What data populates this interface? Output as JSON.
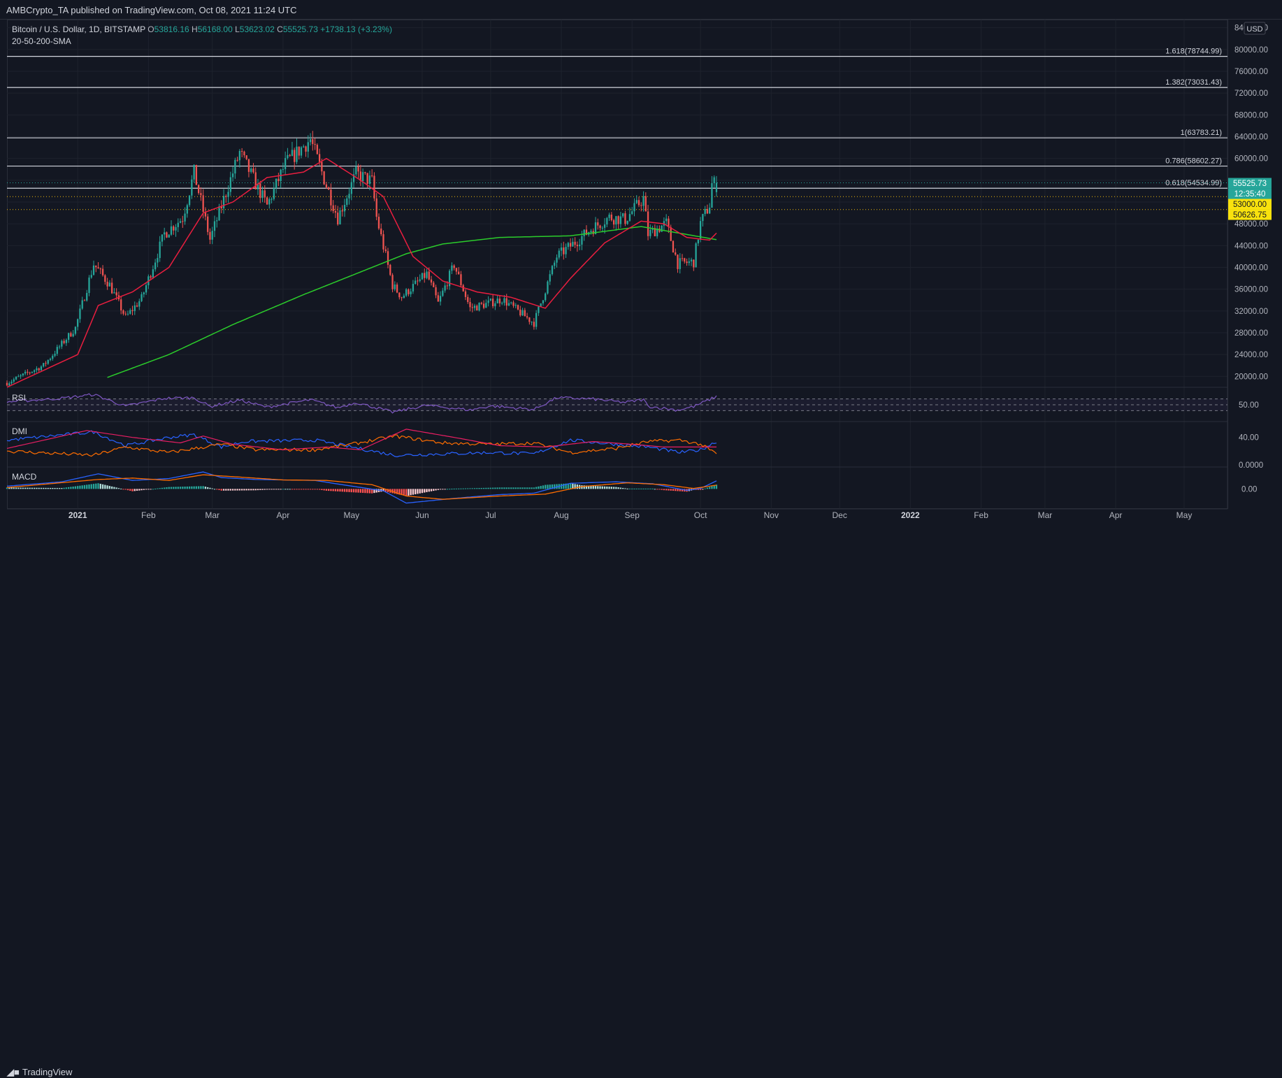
{
  "header": {
    "text": "AMBCrypto_TA published on TradingView.com, Oct 08, 2021 11:24 UTC"
  },
  "footer": {
    "logo_text": "TradingView"
  },
  "colors": {
    "background": "#131722",
    "grid": "#1e222d",
    "up": "#26a69a",
    "down": "#ef5350",
    "sma20": "#e91e3f",
    "sma200": "#2bcc2b",
    "rsi": "#7e57c2",
    "dmi_plus": "#2962ff",
    "dmi_minus": "#ff6d00",
    "adx": "#e91e63",
    "macd": "#2962ff",
    "signal": "#ff6d00",
    "level_line": "#d1d4dc",
    "dotted_level": "#f0b90b"
  },
  "chart_data": [
    {
      "type": "candlestick",
      "title": "Bitcoin / U.S. Dollar, 1D, BITSTAMP",
      "ohlc_text": {
        "o_label": "O",
        "o": "53816.16",
        "h_label": "H",
        "h": "56168.00",
        "l_label": "L",
        "l": "53623.02",
        "c_label": "C",
        "c": "55525.73",
        "change": "+1738.13 (+3.23%)"
      },
      "indicator_label": "20-50-200-SMA",
      "currency": "USD",
      "y_ticks": [
        "84000.00",
        "80000.00",
        "76000.00",
        "72000.00",
        "68000.00",
        "64000.00",
        "60000.00",
        "48000.00",
        "44000.00",
        "40000.00",
        "36000.00",
        "32000.00",
        "28000.00",
        "24000.00",
        "20000.00"
      ],
      "ylim": [
        18500,
        85500
      ],
      "x_ticks": [
        "2021",
        "Feb",
        "Mar",
        "Apr",
        "May",
        "Jun",
        "Jul",
        "Aug",
        "Sep",
        "Oct",
        "Nov",
        "Dec",
        "2022",
        "Feb",
        "Mar",
        "Apr",
        "May"
      ],
      "x_tick_dates": [
        "2021-01-01",
        "2021-02-01",
        "2021-03-01",
        "2021-04-01",
        "2021-05-01",
        "2021-06-01",
        "2021-07-01",
        "2021-08-01",
        "2021-09-01",
        "2021-10-01",
        "2021-11-01",
        "2021-12-01",
        "2022-01-01",
        "2022-02-01",
        "2022-03-01",
        "2022-04-01",
        "2022-05-01"
      ],
      "x_start": "2020-12-01",
      "x_end": "2022-05-20",
      "price_anchors": [
        [
          "2020-12-01",
          18800
        ],
        [
          "2020-12-17",
          22000
        ],
        [
          "2020-12-31",
          28900
        ],
        [
          "2021-01-08",
          40600
        ],
        [
          "2021-01-15",
          36800
        ],
        [
          "2021-01-22",
          30800
        ],
        [
          "2021-01-29",
          34300
        ],
        [
          "2021-02-08",
          46200
        ],
        [
          "2021-02-16",
          49100
        ],
        [
          "2021-02-21",
          57400
        ],
        [
          "2021-02-28",
          45100
        ],
        [
          "2021-03-13",
          61100
        ],
        [
          "2021-03-25",
          51300
        ],
        [
          "2021-04-02",
          59000
        ],
        [
          "2021-04-13",
          63500
        ],
        [
          "2021-04-25",
          49100
        ],
        [
          "2021-05-03",
          57200
        ],
        [
          "2021-05-10",
          55800
        ],
        [
          "2021-05-12",
          49200
        ],
        [
          "2021-05-19",
          36700
        ],
        [
          "2021-05-23",
          34600
        ],
        [
          "2021-06-03",
          38800
        ],
        [
          "2021-06-08",
          33400
        ],
        [
          "2021-06-15",
          40500
        ],
        [
          "2021-06-22",
          32500
        ],
        [
          "2021-07-01",
          33500
        ],
        [
          "2021-07-06",
          34200
        ],
        [
          "2021-07-20",
          29800
        ],
        [
          "2021-07-30",
          42000
        ],
        [
          "2021-08-07",
          44600
        ],
        [
          "2021-08-14",
          47000
        ],
        [
          "2021-08-22",
          49200
        ],
        [
          "2021-08-29",
          48800
        ],
        [
          "2021-09-06",
          52700
        ],
        [
          "2021-09-08",
          46100
        ],
        [
          "2021-09-16",
          48100
        ],
        [
          "2021-09-21",
          40700
        ],
        [
          "2021-09-28",
          41000
        ],
        [
          "2021-10-01",
          48100
        ],
        [
          "2021-10-05",
          51500
        ],
        [
          "2021-10-06",
          55300
        ],
        [
          "2021-10-08",
          55525
        ]
      ],
      "sma20_anchors": [
        [
          "2020-12-01",
          18000
        ],
        [
          "2021-01-01",
          24000
        ],
        [
          "2021-01-10",
          33000
        ],
        [
          "2021-01-25",
          35500
        ],
        [
          "2021-02-10",
          40000
        ],
        [
          "2021-02-25",
          50000
        ],
        [
          "2021-03-10",
          52000
        ],
        [
          "2021-03-25",
          56500
        ],
        [
          "2021-04-10",
          57500
        ],
        [
          "2021-04-20",
          60000
        ],
        [
          "2021-05-05",
          56000
        ],
        [
          "2021-05-15",
          53000
        ],
        [
          "2021-05-28",
          42000
        ],
        [
          "2021-06-10",
          37500
        ],
        [
          "2021-06-25",
          35500
        ],
        [
          "2021-07-10",
          34500
        ],
        [
          "2021-07-25",
          32500
        ],
        [
          "2021-08-05",
          38000
        ],
        [
          "2021-08-20",
          44500
        ],
        [
          "2021-09-05",
          48500
        ],
        [
          "2021-09-15",
          48000
        ],
        [
          "2021-09-25",
          45500
        ],
        [
          "2021-10-05",
          45000
        ],
        [
          "2021-10-08",
          46300
        ]
      ],
      "sma200_anchors": [
        [
          "2021-01-14",
          19800
        ],
        [
          "2021-02-10",
          24000
        ],
        [
          "2021-03-10",
          29500
        ],
        [
          "2021-04-10",
          35000
        ],
        [
          "2021-05-10",
          40000
        ],
        [
          "2021-05-25",
          42500
        ],
        [
          "2021-06-10",
          44300
        ],
        [
          "2021-07-05",
          45500
        ],
        [
          "2021-08-05",
          45800
        ],
        [
          "2021-09-05",
          47500
        ],
        [
          "2021-10-08",
          45100
        ]
      ],
      "fib_levels": [
        {
          "label": "1.618(78744.99)",
          "value": 78744.99
        },
        {
          "label": "1.382(73031.43)",
          "value": 73031.43
        },
        {
          "label": "1(63783.21)",
          "value": 63783.21
        },
        {
          "label": "0.786(58602.27)",
          "value": 58602.27
        },
        {
          "label": "0.618(54534.99)",
          "value": 54534.99
        }
      ],
      "horizontal_levels": [
        53000.0,
        50626.75
      ],
      "price_tags": [
        {
          "text": "55525.73",
          "value": 55525.73,
          "bg": "#26a69a",
          "fg": "#ffffff"
        },
        {
          "text": "12:35:40",
          "value": 54400,
          "bg": "#26a69a",
          "fg": "#ffffff"
        },
        {
          "text": "53000.00",
          "value": 53000.0,
          "bg": "#f9e20d",
          "fg": "#131722"
        },
        {
          "text": "50626.75",
          "value": 50626.75,
          "bg": "#f9e20d",
          "fg": "#131722"
        }
      ]
    },
    {
      "type": "line",
      "title": "RSI",
      "y_ticks": [
        "50.00"
      ],
      "ylim": [
        0,
        100
      ],
      "bands": [
        30,
        70
      ],
      "anchors": [
        [
          "2020-12-01",
          60
        ],
        [
          "2020-12-25",
          72
        ],
        [
          "2021-01-08",
          85
        ],
        [
          "2021-01-22",
          45
        ],
        [
          "2021-02-08",
          72
        ],
        [
          "2021-02-21",
          74
        ],
        [
          "2021-02-28",
          44
        ],
        [
          "2021-03-13",
          66
        ],
        [
          "2021-03-25",
          42
        ],
        [
          "2021-04-13",
          67
        ],
        [
          "2021-04-25",
          40
        ],
        [
          "2021-05-03",
          58
        ],
        [
          "2021-05-19",
          25
        ],
        [
          "2021-06-03",
          48
        ],
        [
          "2021-06-22",
          32
        ],
        [
          "2021-07-01",
          46
        ],
        [
          "2021-07-20",
          34
        ],
        [
          "2021-07-30",
          74
        ],
        [
          "2021-08-14",
          70
        ],
        [
          "2021-08-29",
          58
        ],
        [
          "2021-09-06",
          68
        ],
        [
          "2021-09-08",
          45
        ],
        [
          "2021-09-21",
          32
        ],
        [
          "2021-09-28",
          44
        ],
        [
          "2021-10-08",
          78
        ]
      ]
    },
    {
      "type": "line",
      "title": "DMI",
      "y_ticks": [
        "40.00",
        "0.0000"
      ],
      "ylim": [
        0,
        60
      ],
      "series": [
        {
          "anchors": [
            [
              "2020-12-01",
              36
            ],
            [
              "2021-01-08",
              48
            ],
            [
              "2021-01-22",
              28
            ],
            [
              "2021-02-10",
              40
            ],
            [
              "2021-02-21",
              44
            ],
            [
              "2021-03-05",
              26
            ],
            [
              "2021-03-15",
              34
            ],
            [
              "2021-04-15",
              36
            ],
            [
              "2021-05-01",
              26
            ],
            [
              "2021-05-20",
              14
            ],
            [
              "2021-06-10",
              16
            ],
            [
              "2021-07-01",
              18
            ],
            [
              "2021-07-20",
              16
            ],
            [
              "2021-08-05",
              36
            ],
            [
              "2021-08-25",
              30
            ],
            [
              "2021-09-08",
              26
            ],
            [
              "2021-09-22",
              18
            ],
            [
              "2021-10-01",
              22
            ],
            [
              "2021-10-08",
              34
            ]
          ]
        },
        {
          "anchors": [
            [
              "2020-12-01",
              20
            ],
            [
              "2021-01-08",
              14
            ],
            [
              "2021-01-22",
              26
            ],
            [
              "2021-02-10",
              18
            ],
            [
              "2021-03-05",
              30
            ],
            [
              "2021-03-20",
              22
            ],
            [
              "2021-04-15",
              22
            ],
            [
              "2021-05-01",
              30
            ],
            [
              "2021-05-20",
              42
            ],
            [
              "2021-06-10",
              32
            ],
            [
              "2021-07-01",
              30
            ],
            [
              "2021-07-20",
              32
            ],
            [
              "2021-08-05",
              18
            ],
            [
              "2021-08-25",
              24
            ],
            [
              "2021-09-08",
              34
            ],
            [
              "2021-09-22",
              36
            ],
            [
              "2021-10-01",
              30
            ],
            [
              "2021-10-08",
              16
            ]
          ]
        },
        {
          "anchors": [
            [
              "2020-12-01",
              24
            ],
            [
              "2021-01-05",
              50
            ],
            [
              "2021-01-25",
              40
            ],
            [
              "2021-02-15",
              32
            ],
            [
              "2021-02-25",
              42
            ],
            [
              "2021-03-10",
              30
            ],
            [
              "2021-04-01",
              22
            ],
            [
              "2021-04-20",
              26
            ],
            [
              "2021-05-05",
              22
            ],
            [
              "2021-05-25",
              52
            ],
            [
              "2021-06-15",
              40
            ],
            [
              "2021-07-05",
              28
            ],
            [
              "2021-07-25",
              26
            ],
            [
              "2021-08-15",
              34
            ],
            [
              "2021-09-01",
              30
            ],
            [
              "2021-09-15",
              26
            ],
            [
              "2021-09-28",
              26
            ],
            [
              "2021-10-08",
              26
            ]
          ]
        }
      ]
    },
    {
      "type": "bar_line",
      "title": "MACD",
      "y_ticks": [
        "0.00"
      ],
      "ylim": [
        -3500,
        4200
      ],
      "macd_anchors": [
        [
          "2020-12-01",
          600
        ],
        [
          "2020-12-25",
          1500
        ],
        [
          "2021-01-10",
          3200
        ],
        [
          "2021-01-25",
          1800
        ],
        [
          "2021-02-10",
          2200
        ],
        [
          "2021-02-25",
          3600
        ],
        [
          "2021-03-05",
          2400
        ],
        [
          "2021-03-20",
          2000
        ],
        [
          "2021-04-15",
          1800
        ],
        [
          "2021-05-01",
          600
        ],
        [
          "2021-05-15",
          -400
        ],
        [
          "2021-05-25",
          -3000
        ],
        [
          "2021-06-15",
          -2000
        ],
        [
          "2021-07-05",
          -1200
        ],
        [
          "2021-07-20",
          -900
        ],
        [
          "2021-08-05",
          1200
        ],
        [
          "2021-08-25",
          1500
        ],
        [
          "2021-09-10",
          1100
        ],
        [
          "2021-09-25",
          -300
        ],
        [
          "2021-10-01",
          100
        ],
        [
          "2021-10-08",
          1700
        ]
      ],
      "signal_anchors": [
        [
          "2020-12-01",
          300
        ],
        [
          "2021-01-10",
          2000
        ],
        [
          "2021-01-25",
          2300
        ],
        [
          "2021-02-10",
          1800
        ],
        [
          "2021-02-25",
          3000
        ],
        [
          "2021-03-10",
          2600
        ],
        [
          "2021-04-01",
          1900
        ],
        [
          "2021-04-20",
          1800
        ],
        [
          "2021-05-10",
          900
        ],
        [
          "2021-05-25",
          -1500
        ],
        [
          "2021-06-10",
          -2200
        ],
        [
          "2021-07-05",
          -1500
        ],
        [
          "2021-07-25",
          -1100
        ],
        [
          "2021-08-10",
          500
        ],
        [
          "2021-08-30",
          1300
        ],
        [
          "2021-09-15",
          900
        ],
        [
          "2021-09-28",
          100
        ],
        [
          "2021-10-08",
          800
        ]
      ]
    }
  ]
}
